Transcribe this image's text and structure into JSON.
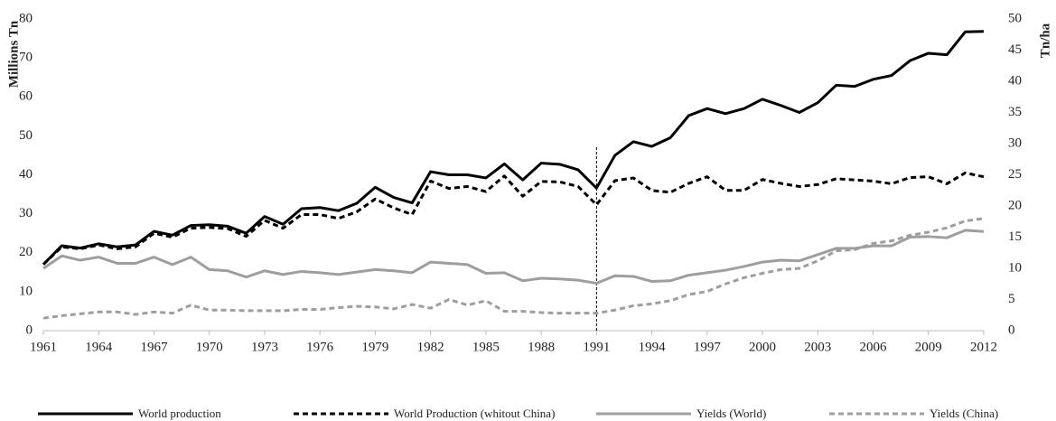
{
  "chart_data": {
    "type": "line",
    "y_label": "Millions Tn",
    "y2_label": "Tn/ha",
    "x": [
      1961,
      1962,
      1963,
      1964,
      1965,
      1966,
      1967,
      1968,
      1969,
      1970,
      1971,
      1972,
      1973,
      1974,
      1975,
      1976,
      1977,
      1978,
      1979,
      1980,
      1981,
      1982,
      1983,
      1984,
      1985,
      1986,
      1987,
      1988,
      1989,
      1990,
      1991,
      1992,
      1993,
      1994,
      1995,
      1996,
      1997,
      1998,
      1999,
      2000,
      2001,
      2002,
      2003,
      2004,
      2005,
      2006,
      2007,
      2008,
      2009,
      2010,
      2011,
      2012
    ],
    "xlim": [
      1961,
      2012
    ],
    "xticks": [
      1961,
      1964,
      1967,
      1970,
      1973,
      1976,
      1979,
      1982,
      1985,
      1988,
      1991,
      1994,
      1997,
      2000,
      2003,
      2006,
      2009,
      2012
    ],
    "ylim": [
      0,
      80
    ],
    "yticks": [
      0,
      10,
      20,
      30,
      40,
      50,
      60,
      70,
      80
    ],
    "y2lim": [
      0,
      50
    ],
    "y2ticks": [
      0,
      5,
      10,
      15,
      20,
      25,
      30,
      35,
      40,
      45,
      50
    ],
    "vline_x": 1991,
    "series": [
      {
        "name": "World production",
        "color": "#000000",
        "dashed": false,
        "values": [
          17,
          21.8,
          21.2,
          22.3,
          21.5,
          22,
          25.5,
          24.5,
          27,
          27.2,
          26.8,
          25,
          29.3,
          27.3,
          31.3,
          31.6,
          30.8,
          32.7,
          36.8,
          34.2,
          32.8,
          40.8,
          40,
          40,
          39.2,
          42.8,
          38.7,
          43,
          42.7,
          41.3,
          36.6,
          45,
          48.5,
          47.3,
          49.5,
          55.2,
          57,
          55.7,
          57,
          59.4,
          57.8,
          56,
          58.5,
          63,
          62.7,
          64.5,
          65.5,
          69.3,
          71.2,
          70.8,
          76.7,
          76.8
        ]
      },
      {
        "name": "World Production (whitout China)",
        "color": "#000000",
        "dashed": true,
        "values": [
          17,
          21.5,
          21,
          22,
          21,
          21.5,
          25,
          24,
          26.3,
          26.5,
          26.2,
          24.2,
          28.3,
          26.3,
          29.8,
          29.8,
          28.8,
          30.5,
          33.8,
          31.5,
          29.8,
          38.4,
          36.5,
          37,
          35.7,
          39.7,
          34.5,
          38.3,
          38.2,
          37,
          32.3,
          38.5,
          39.2,
          36,
          35.5,
          37.8,
          39.5,
          36,
          36,
          38.8,
          37.8,
          37,
          37.5,
          39,
          38.7,
          38.4,
          37.7,
          39.3,
          39.5,
          37.7,
          40.5,
          39.5
        ]
      },
      {
        "name": "Yields (World)",
        "color": "#9e9e9e",
        "dashed": false,
        "axis": "y2",
        "values": [
          10,
          12,
          11.3,
          11.8,
          10.8,
          10.8,
          11.8,
          10.6,
          11.8,
          9.8,
          9.6,
          8.6,
          9.6,
          9,
          9.5,
          9.3,
          9,
          9.4,
          9.8,
          9.6,
          9.3,
          11,
          10.8,
          10.6,
          9.2,
          9.3,
          8,
          8.4,
          8.3,
          8.1,
          7.6,
          8.8,
          8.7,
          7.9,
          8,
          8.9,
          9.3,
          9.7,
          10.3,
          11,
          11.3,
          11.2,
          12.2,
          13.2,
          13.2,
          13.6,
          13.6,
          15,
          15.1,
          14.9,
          16.1,
          15.9
        ]
      },
      {
        "name": "Yields (China)",
        "color": "#9e9e9e",
        "dashed": true,
        "axis": "y2",
        "values": [
          2,
          2.4,
          2.7,
          3,
          3,
          2.6,
          3,
          2.8,
          4.1,
          3.3,
          3.3,
          3.2,
          3.2,
          3.2,
          3.4,
          3.4,
          3.7,
          3.9,
          3.8,
          3.5,
          4.2,
          3.6,
          5,
          4.1,
          4.8,
          3.1,
          3.1,
          2.9,
          2.8,
          2.8,
          2.8,
          3.3,
          4,
          4.3,
          4.8,
          5.8,
          6.3,
          7.5,
          8.5,
          9.2,
          9.8,
          10,
          11.2,
          12.8,
          13,
          14,
          14.4,
          15.3,
          15.8,
          16.5,
          17.6,
          18
        ]
      }
    ]
  }
}
